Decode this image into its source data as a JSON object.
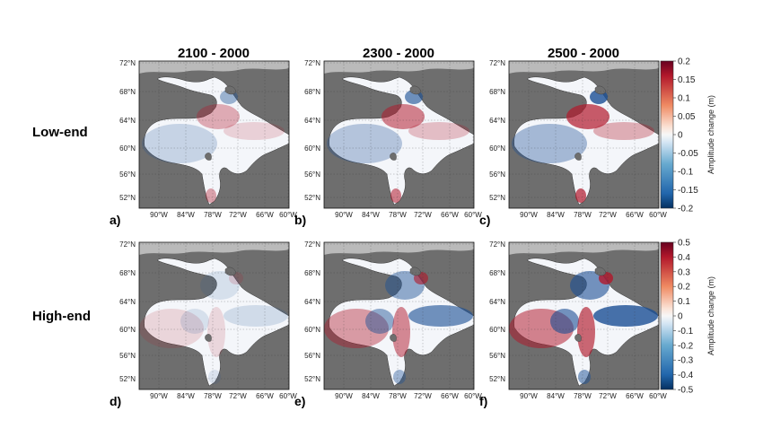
{
  "chart_data": {
    "type": "heatmap",
    "columns": [
      {
        "title": "2100 - 2000",
        "year_end": 2100
      },
      {
        "title": "2300 - 2000",
        "year_end": 2300
      },
      {
        "title": "2500 - 2000",
        "year_end": 2500
      }
    ],
    "rows": [
      {
        "label": "Low-end",
        "colorbar": {
          "label": "Amplitude change (m)",
          "ticks": [
            "0.2",
            "0.15",
            "0.1",
            "0.05",
            "0",
            "-0.05",
            "-0.1",
            "-0.15",
            "-0.2"
          ],
          "range": [
            -0.2,
            0.2
          ]
        }
      },
      {
        "label": "High-end",
        "colorbar": {
          "label": "Amplitude change (m)",
          "ticks": [
            "0.5",
            "0.4",
            "0.3",
            "0.2",
            "0.1",
            "0",
            "-0.1",
            "-0.2",
            "-0.3",
            "-0.4",
            "-0.5"
          ],
          "range": [
            -0.5,
            0.5
          ]
        }
      }
    ],
    "panels": [
      {
        "label": "a)",
        "row": 0,
        "col": 0,
        "intensity": 0.35
      },
      {
        "label": "b)",
        "row": 0,
        "col": 1,
        "intensity": 0.7
      },
      {
        "label": "c)",
        "row": 0,
        "col": 2,
        "intensity": 1.0
      },
      {
        "label": "d)",
        "row": 1,
        "col": 0,
        "intensity": 0.15
      },
      {
        "label": "e)",
        "row": 1,
        "col": 1,
        "intensity": 0.75
      },
      {
        "label": "f)",
        "row": 1,
        "col": 2,
        "intensity": 1.0
      }
    ],
    "lat_ticks": [
      "72°N",
      "68°N",
      "64°N",
      "60°N",
      "56°N",
      "52°N"
    ],
    "lon_ticks": [
      "90°W",
      "84°W",
      "78°W",
      "72°W",
      "66°W",
      "60°W"
    ],
    "xlim": [
      "93°W",
      "60°W"
    ],
    "ylim": [
      "50°N",
      "72°N"
    ],
    "grid": true,
    "colors": {
      "land": "#6e6e6e",
      "red": "#b2182b",
      "blue": "#1a4f95",
      "neutral": "#f4f6fa"
    }
  }
}
